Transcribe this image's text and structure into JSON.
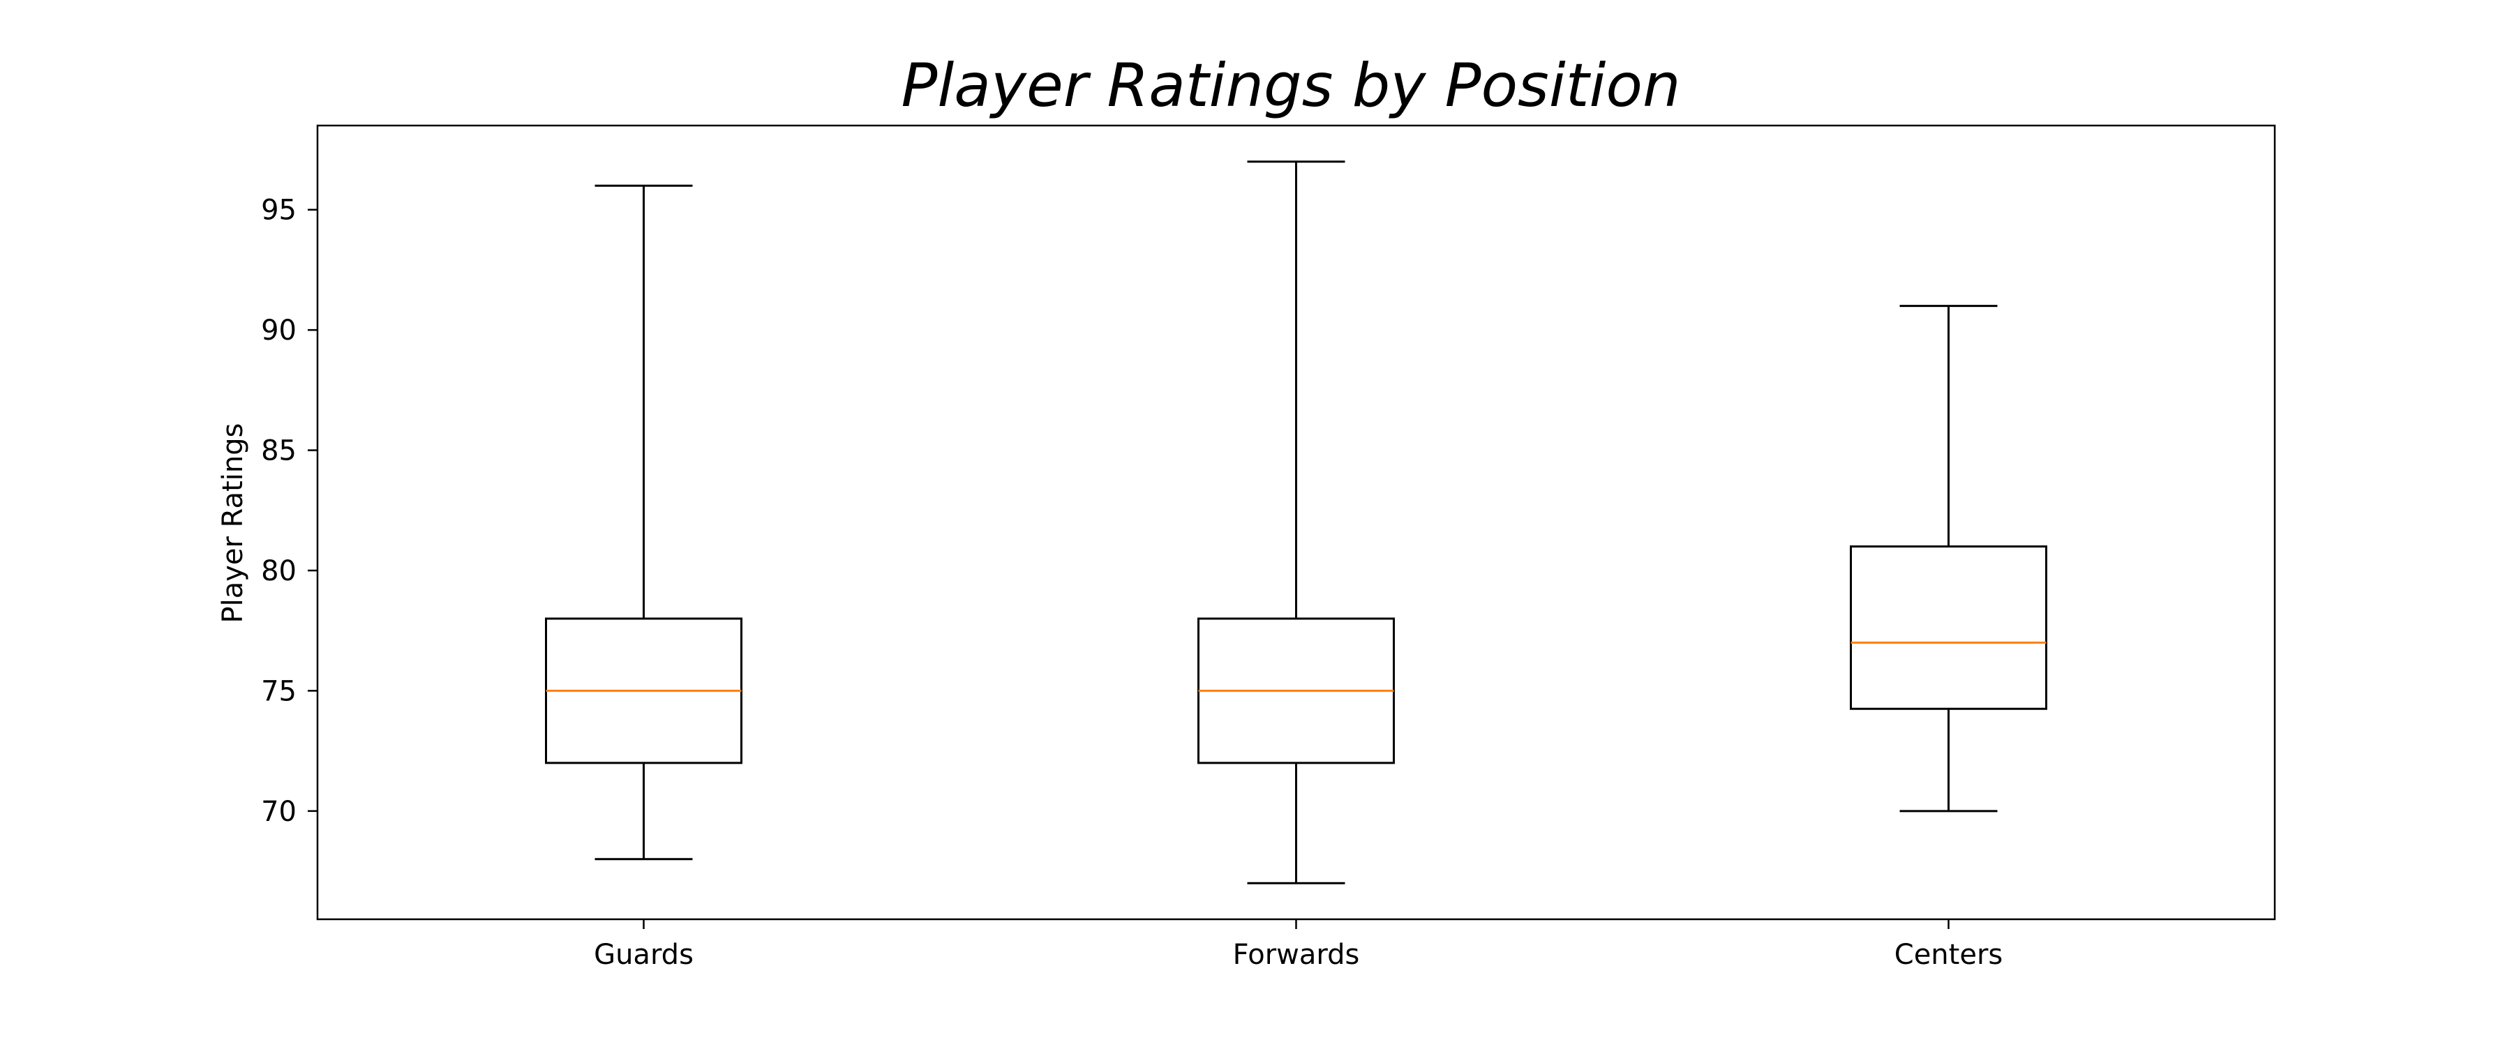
{
  "chart_data": {
    "type": "box",
    "title": "Player Ratings by Position",
    "xlabel": "",
    "ylabel": "Player Ratings",
    "categories": [
      "Guards",
      "Forwards",
      "Centers"
    ],
    "boxes": [
      {
        "category": "Guards",
        "whisker_low": 68,
        "q1": 72,
        "median": 75,
        "q3": 78,
        "whisker_high": 96
      },
      {
        "category": "Forwards",
        "whisker_low": 67,
        "q1": 72,
        "median": 75,
        "q3": 78,
        "whisker_high": 97
      },
      {
        "category": "Centers",
        "whisker_low": 70,
        "q1": 74.25,
        "median": 77,
        "q3": 81,
        "whisker_high": 91
      }
    ],
    "ylim": [
      65.5,
      98.5
    ],
    "yticks": [
      70,
      75,
      80,
      85,
      90,
      95
    ],
    "grid": false,
    "legend": "none",
    "colors": {
      "box": "#000000",
      "median": "#ff7f0e",
      "whisker": "#000000",
      "axes": "#000000"
    }
  }
}
